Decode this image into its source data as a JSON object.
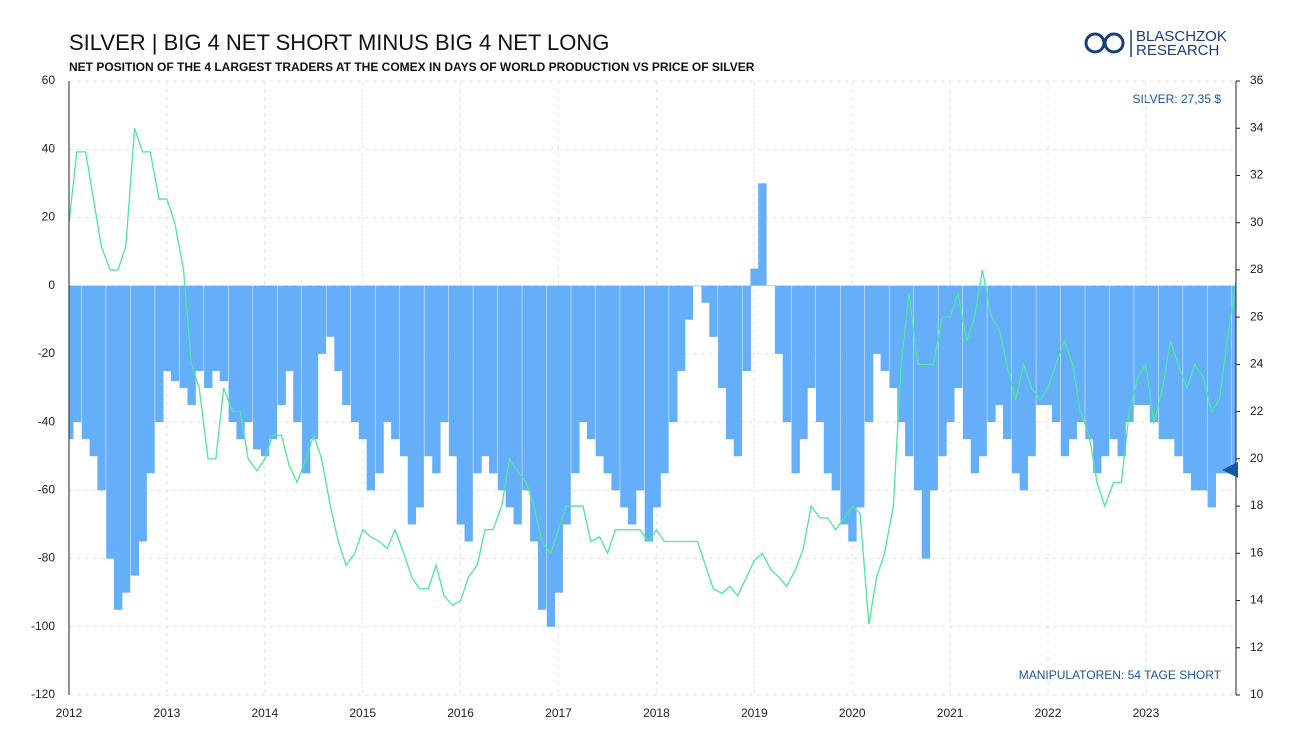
{
  "chart_data": {
    "type": "bar",
    "title": "SILVER | BIG 4 NET SHORT MINUS BIG 4 NET LONG",
    "subtitle": "NET POSITION OF THE 4 LARGEST TRADERS AT THE COMEX IN DAYS OF WORLD PRODUCTION VS PRICE OF SILVER",
    "annotations": [
      "SILVER: 27,35 $",
      "MANIPULATOREN: 54 TAGE SHORT"
    ],
    "logo": [
      "BLASCHZOK",
      "RESEARCH"
    ],
    "grid": true,
    "xlim": [
      2012,
      2023.92
    ],
    "xticks": [
      2012,
      2013,
      2014,
      2015,
      2016,
      2017,
      2018,
      2019,
      2020,
      2021,
      2022,
      2023
    ],
    "ylim": [
      -120,
      60
    ],
    "yticks": [
      -120,
      -100,
      -80,
      -60,
      -40,
      -20,
      0,
      20,
      40,
      60
    ],
    "y2lim": [
      10,
      36
    ],
    "y2ticks": [
      10,
      12,
      14,
      16,
      18,
      20,
      22,
      24,
      26,
      28,
      30,
      32,
      34,
      36
    ],
    "x": [
      2012.0,
      2012.08,
      2012.17,
      2012.25,
      2012.33,
      2012.42,
      2012.5,
      2012.58,
      2012.67,
      2012.75,
      2012.83,
      2012.92,
      2013.0,
      2013.08,
      2013.17,
      2013.25,
      2013.33,
      2013.42,
      2013.5,
      2013.58,
      2013.67,
      2013.75,
      2013.83,
      2013.92,
      2014.0,
      2014.08,
      2014.17,
      2014.25,
      2014.33,
      2014.42,
      2014.5,
      2014.58,
      2014.67,
      2014.75,
      2014.83,
      2014.92,
      2015.0,
      2015.08,
      2015.17,
      2015.25,
      2015.33,
      2015.42,
      2015.5,
      2015.58,
      2015.67,
      2015.75,
      2015.83,
      2015.92,
      2016.0,
      2016.08,
      2016.17,
      2016.25,
      2016.33,
      2016.42,
      2016.5,
      2016.58,
      2016.67,
      2016.75,
      2016.83,
      2016.92,
      2017.0,
      2017.08,
      2017.17,
      2017.25,
      2017.33,
      2017.42,
      2017.5,
      2017.58,
      2017.67,
      2017.75,
      2017.83,
      2017.92,
      2018.0,
      2018.08,
      2018.17,
      2018.25,
      2018.33,
      2018.42,
      2018.5,
      2018.58,
      2018.67,
      2018.75,
      2018.83,
      2018.92,
      2019.0,
      2019.08,
      2019.17,
      2019.25,
      2019.33,
      2019.42,
      2019.5,
      2019.58,
      2019.67,
      2019.75,
      2019.83,
      2019.92,
      2020.0,
      2020.08,
      2020.17,
      2020.25,
      2020.33,
      2020.42,
      2020.5,
      2020.58,
      2020.67,
      2020.75,
      2020.83,
      2020.92,
      2021.0,
      2021.08,
      2021.17,
      2021.25,
      2021.33,
      2021.42,
      2021.5,
      2021.58,
      2021.67,
      2021.75,
      2021.83,
      2021.92,
      2022.0,
      2022.08,
      2022.17,
      2022.25,
      2022.33,
      2022.42,
      2022.5,
      2022.58,
      2022.67,
      2022.75,
      2022.83,
      2022.92,
      2023.0,
      2023.08,
      2023.17,
      2023.25,
      2023.33,
      2023.42,
      2023.5,
      2023.58,
      2023.67,
      2023.75,
      2023.83,
      2023.92
    ],
    "series": [
      {
        "type": "bar",
        "color": "#64aefa",
        "values": [
          -45,
          -40,
          -45,
          -50,
          -60,
          -80,
          -95,
          -90,
          -85,
          -75,
          -55,
          -40,
          -25,
          -28,
          -30,
          -35,
          -25,
          -30,
          -25,
          -28,
          -40,
          -45,
          -40,
          -48,
          -50,
          -45,
          -35,
          -25,
          -40,
          -55,
          -45,
          -20,
          -15,
          -25,
          -35,
          -40,
          -45,
          -60,
          -55,
          -40,
          -45,
          -50,
          -70,
          -65,
          -50,
          -55,
          -40,
          -50,
          -70,
          -75,
          -55,
          -50,
          -55,
          -60,
          -65,
          -70,
          -60,
          -75,
          -95,
          -100,
          -90,
          -70,
          -55,
          -40,
          -45,
          -50,
          -55,
          -60,
          -65,
          -70,
          -60,
          -75,
          -65,
          -55,
          -40,
          -25,
          -10,
          0,
          -5,
          -15,
          -30,
          -45,
          -50,
          -25,
          5,
          30,
          0,
          -20,
          -40,
          -55,
          -45,
          -30,
          -40,
          -55,
          -60,
          -70,
          -75,
          -65,
          -40,
          -20,
          -25,
          -30,
          -40,
          -50,
          -60,
          -80,
          -60,
          -50,
          -40,
          -30,
          -45,
          -55,
          -50,
          -40,
          -35,
          -45,
          -55,
          -60,
          -50,
          -35,
          -35,
          -40,
          -50,
          -45,
          -40,
          -45,
          -55,
          -50,
          -45,
          -50,
          -40,
          -35,
          -35,
          -40,
          -45,
          -45,
          -50,
          -55,
          -60,
          -60,
          -65,
          -55,
          -55,
          -54
        ]
      },
      {
        "type": "line",
        "axis": "y2",
        "color": "#4de89a",
        "values": [
          30,
          33,
          33,
          31,
          29,
          28,
          28,
          29,
          34,
          33,
          33,
          31,
          31,
          30,
          28,
          24,
          23,
          20,
          20,
          23,
          22,
          22,
          20,
          19.5,
          20,
          21,
          21,
          19.7,
          19,
          20,
          21,
          20,
          18,
          16.5,
          15.5,
          16,
          17,
          16.7,
          16.5,
          16.2,
          17,
          16,
          15,
          14.5,
          14.5,
          15.5,
          14.2,
          13.8,
          14,
          15,
          15.5,
          17,
          17,
          18,
          20,
          19.5,
          19,
          18,
          16.5,
          16,
          17,
          18,
          18,
          18,
          16.5,
          16.7,
          16,
          17,
          17,
          17,
          17,
          16.5,
          17,
          16.5,
          16.5,
          16.5,
          16.5,
          16.5,
          15.5,
          14.5,
          14.3,
          14.6,
          14.2,
          15,
          15.7,
          16,
          15.3,
          15,
          14.6,
          15.3,
          16.2,
          18,
          17.5,
          17.5,
          17,
          17.5,
          18,
          17.7,
          13,
          15,
          16,
          18,
          24,
          27,
          24,
          24,
          24,
          26,
          26,
          27,
          25,
          26,
          28,
          26,
          25.5,
          24,
          22.5,
          24,
          23,
          22.5,
          23,
          24,
          25,
          24,
          22,
          21,
          19,
          18,
          19,
          19,
          22,
          23.5,
          24,
          21.5,
          23,
          25,
          24,
          23,
          24,
          23.5,
          22,
          22.5,
          25,
          27.5
        ]
      }
    ]
  }
}
